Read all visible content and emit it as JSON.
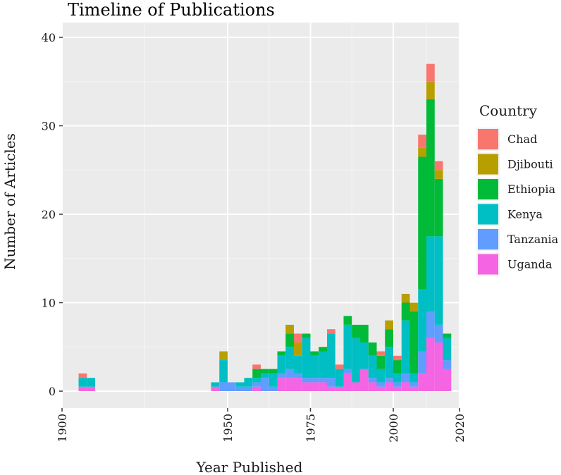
{
  "chart_data": {
    "type": "bar",
    "stacked": true,
    "title": "Timeline of Publications",
    "xlabel": "Year Published",
    "ylabel": "Number of Articles",
    "xlim": [
      1900,
      2020
    ],
    "ylim": [
      0,
      40
    ],
    "x_ticks": [
      "1900",
      "1950",
      "1975",
      "2000",
      "2020"
    ],
    "y_ticks": [
      "0",
      "10",
      "20",
      "30",
      "40"
    ],
    "bin_width": 2.5,
    "grid": true,
    "legend": {
      "title": "Country",
      "placement": "right"
    },
    "series": [
      {
        "name": "Uganda",
        "color": "#F564E3",
        "values": [
          0.5,
          0.5,
          0,
          0,
          0,
          0,
          0,
          0,
          0,
          0,
          0,
          0,
          0,
          0,
          0,
          0,
          0.5,
          0,
          0,
          0,
          0,
          0.5,
          0,
          0,
          1.5,
          1.5,
          1.5,
          1,
          1,
          1,
          0.5,
          0.5,
          2,
          1,
          2.5,
          1,
          0.5,
          1,
          0.5,
          1,
          0.5,
          2,
          6,
          5.5,
          2.5
        ]
      },
      {
        "name": "Tanzania",
        "color": "#619CFF",
        "values": [
          0,
          0,
          0,
          0,
          0,
          0,
          0,
          0,
          0,
          0,
          0,
          0,
          0,
          0,
          0,
          0,
          0,
          1,
          1,
          0.5,
          0.5,
          0.5,
          1.5,
          0.5,
          0.5,
          1,
          0.5,
          0.5,
          0.5,
          0.5,
          1,
          0,
          0.5,
          0,
          0,
          0.5,
          0.5,
          0.5,
          0.5,
          1,
          0.5,
          2.5,
          3,
          2,
          1
        ]
      },
      {
        "name": "Kenya",
        "color": "#00BFC4",
        "values": [
          1,
          1,
          0,
          0,
          0,
          0,
          0,
          0,
          0,
          0,
          0,
          0,
          0,
          0,
          0,
          0,
          0.5,
          2.5,
          0,
          0.5,
          1,
          0.5,
          0.5,
          1.5,
          2,
          2.5,
          2,
          4.5,
          2.5,
          3,
          5,
          2,
          5,
          5,
          3,
          2.5,
          1.5,
          3.5,
          1,
          6,
          1,
          7,
          8.5,
          10,
          2.5
        ]
      },
      {
        "name": "Ethiopia",
        "color": "#00BA38",
        "values": [
          0,
          0,
          0,
          0,
          0,
          0,
          0,
          0,
          0,
          0,
          0,
          0,
          0,
          0,
          0,
          0,
          0,
          0,
          0,
          0,
          0,
          1,
          0.5,
          0.5,
          0.5,
          1.5,
          0,
          0.5,
          0.5,
          0.5,
          0,
          0,
          1,
          1.5,
          2,
          1.5,
          1.5,
          2,
          1.5,
          2,
          7,
          15,
          15.5,
          6.5,
          0.5
        ]
      },
      {
        "name": "Djibouti",
        "color": "#B79F00",
        "values": [
          0,
          0,
          0,
          0,
          0,
          0,
          0,
          0,
          0,
          0,
          0,
          0,
          0,
          0,
          0,
          0,
          0,
          1,
          0,
          0,
          0,
          0,
          0,
          0,
          0,
          1,
          1.5,
          0,
          0,
          0,
          0,
          0,
          0,
          0,
          0,
          0,
          0,
          1,
          0,
          1,
          1,
          1,
          2,
          1,
          0
        ]
      },
      {
        "name": "Chad",
        "color": "#F8766D",
        "values": [
          0.5,
          0,
          0,
          0,
          0,
          0,
          0,
          0,
          0,
          0,
          0,
          0,
          0,
          0,
          0,
          0,
          0,
          0,
          0,
          0,
          0,
          0.5,
          0,
          0,
          0,
          0,
          1,
          0,
          0,
          0,
          0.5,
          0.5,
          0,
          0,
          0,
          0,
          0.5,
          0,
          0.5,
          0,
          0,
          1.5,
          2,
          1,
          0
        ]
      }
    ]
  }
}
